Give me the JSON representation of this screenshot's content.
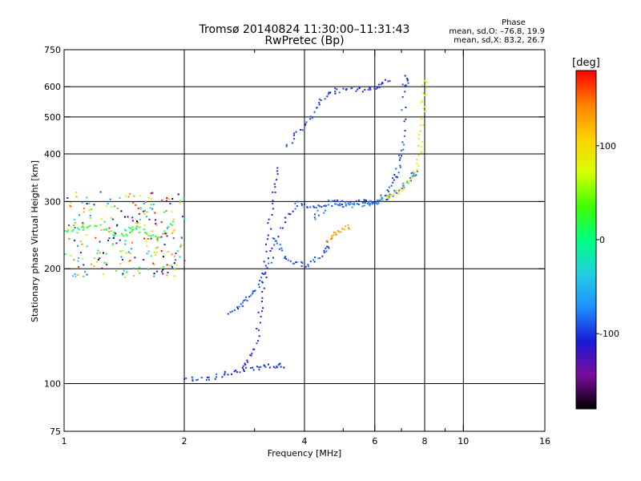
{
  "header": {
    "title_line1": "Tromsø 20140824 11:30:00–11:31:43",
    "title_line2": "RwPretec (Bp)",
    "phase_label": "Phase",
    "phase_o": "mean, sd,O: –76.8, 19.9",
    "phase_x": "mean, sd,X:  83.2, 26.7"
  },
  "chart_data": {
    "type": "scatter",
    "xlabel": "Frequency [MHz]",
    "ylabel": "Stationary phase Virtual Height [km]",
    "xscale": "log",
    "yscale": "log",
    "xlim": [
      1,
      16
    ],
    "ylim": [
      75,
      750
    ],
    "x_ticks": [
      1,
      2,
      4,
      6,
      8,
      10,
      16
    ],
    "x_minor_ticks": [
      3,
      5,
      7,
      9
    ],
    "y_ticks": [
      75,
      100,
      200,
      300,
      400,
      500,
      600,
      750
    ],
    "grid": true,
    "colorbar": {
      "label": "[deg]",
      "range": [
        -180,
        180
      ],
      "ticks": [
        100,
        0,
        -100
      ],
      "colormap": [
        "#000000",
        "#7a0c9c",
        "#1a1ad6",
        "#1e90ff",
        "#20d0e0",
        "#00ff80",
        "#40ff00",
        "#d8ff00",
        "#ffd000",
        "#ff8000",
        "#ff0000"
      ]
    },
    "traces": [
      {
        "name": "",
        "phase": -95,
        "points": [
          [
            2.6,
            155
          ],
          [
            2.8,
            163
          ],
          [
            3.0,
            176
          ],
          [
            3.2,
            200
          ],
          [
            3.5,
            260
          ],
          [
            3.8,
            300
          ],
          [
            4.2,
            290
          ],
          [
            4.8,
            300
          ],
          [
            5.5,
            300
          ],
          [
            6.0,
            300
          ],
          [
            6.4,
            318
          ],
          [
            6.8,
            360
          ],
          [
            7.0,
            420
          ],
          [
            7.1,
            600
          ],
          [
            7.2,
            640
          ]
        ]
      },
      {
        "name": "",
        "phase": -110,
        "points": [
          [
            2.8,
            110
          ],
          [
            3.0,
            125
          ],
          [
            3.1,
            160
          ],
          [
            3.2,
            215
          ],
          [
            3.3,
            300
          ],
          [
            3.4,
            380
          ]
        ]
      },
      {
        "name": "",
        "phase": -90,
        "points": [
          [
            3.3,
            245
          ],
          [
            3.6,
            212
          ],
          [
            4.0,
            205
          ],
          [
            4.4,
            218
          ],
          [
            4.6,
            235
          ]
        ]
      },
      {
        "name": "",
        "phase": -100,
        "points": [
          [
            3.6,
            420
          ],
          [
            4.0,
            480
          ],
          [
            4.4,
            560
          ],
          [
            4.8,
            590
          ],
          [
            5.4,
            590
          ],
          [
            6.0,
            600
          ],
          [
            6.5,
            630
          ]
        ]
      },
      {
        "name": "",
        "phase": -80,
        "points": [
          [
            4.2,
            270
          ],
          [
            4.6,
            300
          ],
          [
            5.0,
            295
          ],
          [
            5.5,
            295
          ],
          [
            6.0,
            300
          ],
          [
            6.5,
            310
          ],
          [
            7.0,
            330
          ],
          [
            7.4,
            350
          ],
          [
            7.6,
            360
          ]
        ]
      },
      {
        "name": "",
        "phase": 130,
        "points": [
          [
            4.5,
            235
          ],
          [
            4.8,
            250
          ],
          [
            5.2,
            260
          ]
        ]
      },
      {
        "name": "",
        "phase": 90,
        "points": [
          [
            6.2,
            305
          ],
          [
            6.8,
            320
          ],
          [
            7.3,
            340
          ],
          [
            7.6,
            370
          ],
          [
            7.8,
            440
          ],
          [
            7.9,
            550
          ],
          [
            8.0,
            640
          ]
        ]
      },
      {
        "name": "",
        "phase": -100,
        "points": [
          [
            2.0,
            103
          ],
          [
            2.3,
            104
          ],
          [
            2.6,
            107
          ],
          [
            3.0,
            110
          ],
          [
            3.3,
            112
          ],
          [
            3.6,
            112
          ]
        ]
      },
      {
        "name": "",
        "phase": 20,
        "points": [
          [
            1.0,
            250
          ],
          [
            1.2,
            260
          ],
          [
            1.4,
            245
          ],
          [
            1.5,
            260
          ],
          [
            1.7,
            240
          ],
          [
            1.9,
            270
          ]
        ]
      }
    ]
  }
}
